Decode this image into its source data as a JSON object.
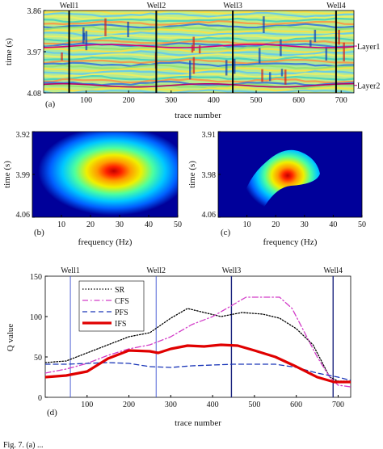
{
  "caption_fragment": "Fig. 7.  (a) ...",
  "chart_data": [
    {
      "panel": "(a)",
      "type": "heatmap",
      "xlabel": "trace number",
      "ylabel": "time (s)",
      "xlim": [
        0,
        730
      ],
      "ylim": [
        4.08,
        3.86
      ],
      "x_ticks": [
        100,
        200,
        300,
        400,
        500,
        600,
        700
      ],
      "y_ticks": [
        "3.86",
        "3.97",
        "4.08"
      ],
      "wells": [
        {
          "name": "Well1",
          "trace": 60
        },
        {
          "name": "Well2",
          "trace": 265
        },
        {
          "name": "Well3",
          "trace": 445
        },
        {
          "name": "Well4",
          "trace": 688
        }
      ],
      "layers": [
        {
          "name": "Layer1",
          "time": 3.955,
          "color": "#d4007a"
        },
        {
          "name": "Layer2",
          "time": 4.06,
          "color": "#b4006a"
        }
      ]
    },
    {
      "panel": "(b)",
      "type": "heatmap",
      "xlabel": "frequency (Hz)",
      "ylabel": "time (s)",
      "xlim": [
        0,
        50
      ],
      "ylim": [
        4.06,
        3.92
      ],
      "x_ticks": [
        10,
        20,
        30,
        40,
        50
      ],
      "y_ticks": [
        "3.92",
        "3.99",
        "4.06"
      ],
      "peak": {
        "frequency": 27,
        "time": 3.99
      }
    },
    {
      "panel": "(c)",
      "type": "heatmap",
      "xlabel": "frequency (Hz)",
      "ylabel": "time (s)",
      "xlim": [
        0,
        50
      ],
      "ylim": [
        4.06,
        3.91
      ],
      "x_ticks": [
        10,
        20,
        30,
        40,
        50
      ],
      "y_ticks": [
        "3.91",
        "3.98",
        "4.06"
      ],
      "peak": {
        "frequency": 31,
        "time": 3.98
      }
    },
    {
      "panel": "(d)",
      "type": "line",
      "xlabel": "trace number",
      "ylabel": "Q value",
      "xlim": [
        0,
        730
      ],
      "ylim": [
        0,
        150
      ],
      "x_ticks": [
        100,
        200,
        300,
        400,
        500,
        600,
        700
      ],
      "y_ticks": [
        0,
        50,
        100,
        150
      ],
      "wells": [
        {
          "name": "Well1",
          "trace": 60
        },
        {
          "name": "Well2",
          "trace": 265
        },
        {
          "name": "Well3",
          "trace": 445
        },
        {
          "name": "Well4",
          "trace": 688
        }
      ],
      "legend_position": "top-left",
      "series": [
        {
          "name": "SR",
          "color": "#000000",
          "style": "dotted",
          "x": [
            0,
            50,
            100,
            150,
            200,
            250,
            300,
            340,
            380,
            420,
            470,
            520,
            560,
            600,
            640,
            680,
            700,
            730
          ],
          "y": [
            43,
            45,
            55,
            65,
            75,
            80,
            98,
            110,
            105,
            100,
            105,
            103,
            98,
            85,
            65,
            25,
            20,
            20
          ]
        },
        {
          "name": "CFS",
          "color": "#d23cc8",
          "style": "dashdot",
          "x": [
            0,
            50,
            100,
            150,
            200,
            250,
            300,
            350,
            400,
            450,
            480,
            520,
            560,
            590,
            620,
            650,
            680,
            700,
            730
          ],
          "y": [
            30,
            35,
            42,
            52,
            60,
            65,
            75,
            90,
            100,
            115,
            124,
            124,
            124,
            110,
            80,
            50,
            25,
            15,
            13
          ]
        },
        {
          "name": "PFS",
          "color": "#1a36b8",
          "style": "dashed",
          "x": [
            0,
            50,
            100,
            150,
            200,
            250,
            300,
            350,
            400,
            450,
            500,
            550,
            600,
            650,
            700,
            730
          ],
          "y": [
            41,
            41,
            42,
            43,
            42,
            38,
            37,
            39,
            40,
            41,
            41,
            41,
            37,
            30,
            25,
            21
          ]
        },
        {
          "name": "IFS",
          "color": "#e00000",
          "style": "solid",
          "x": [
            0,
            50,
            100,
            150,
            200,
            250,
            270,
            300,
            340,
            380,
            420,
            460,
            500,
            550,
            600,
            650,
            690,
            730
          ],
          "y": [
            25,
            27,
            32,
            48,
            58,
            57,
            55,
            60,
            64,
            63,
            65,
            64,
            58,
            50,
            38,
            25,
            19,
            19
          ]
        }
      ]
    }
  ]
}
